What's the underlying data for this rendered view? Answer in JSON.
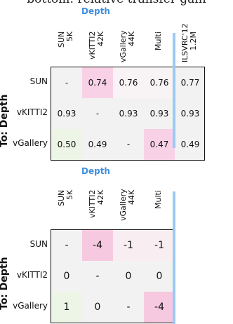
{
  "header_text": "bottom: relative transfer gain",
  "chart_data": [
    {
      "type": "heatmap",
      "title": "Depth",
      "ylabel": "To: Depth",
      "columns": [
        "SUN\n5K",
        "vKITTI2\n42K",
        "vGallery\n44K",
        "Multi",
        "ILSVRC'12\n1.2M"
      ],
      "rows": [
        "SUN",
        "vKITTI2",
        "vGallery"
      ],
      "values": [
        [
          "-",
          "0.74",
          "0.76",
          "0.76",
          "0.77"
        ],
        [
          "0.93",
          "-",
          "0.93",
          "0.93",
          "0.93"
        ],
        [
          "0.50",
          "0.49",
          "-",
          "0.47",
          "0.49"
        ]
      ],
      "colors": [
        [
          "#f2f2f2",
          "#f9d1e6",
          "#f8f3f5",
          "#f8f3f5",
          "#f2f2f2"
        ],
        [
          "#f2f2f2",
          "#f2f2f2",
          "#f2f2f2",
          "#f2f2f2",
          "#f2f2f2"
        ],
        [
          "#edf5e6",
          "#f2f2f2",
          "#f2f2f2",
          "#f9d1e6",
          "#f2f2f2"
        ]
      ]
    },
    {
      "type": "heatmap",
      "title": "Depth",
      "ylabel": "To: Depth",
      "columns": [
        "SUN\n5K",
        "vKITTI2\n42K",
        "vGallery\n44K",
        "Multi"
      ],
      "rows": [
        "SUN",
        "vKITTI2",
        "vGallery"
      ],
      "values": [
        [
          "-",
          "-4",
          "-1",
          "-1"
        ],
        [
          "0",
          "-",
          "0",
          "0"
        ],
        [
          "1",
          "0",
          "-",
          "-4"
        ]
      ],
      "colors": [
        [
          "#f2f2f2",
          "#f7c9e0",
          "#f8eef2",
          "#f8eef2"
        ],
        [
          "#f2f2f2",
          "#f2f2f2",
          "#f2f2f2",
          "#f2f2f2"
        ],
        [
          "#edf5e6",
          "#f2f2f2",
          "#f2f2f2",
          "#f7c9e0"
        ]
      ]
    }
  ]
}
